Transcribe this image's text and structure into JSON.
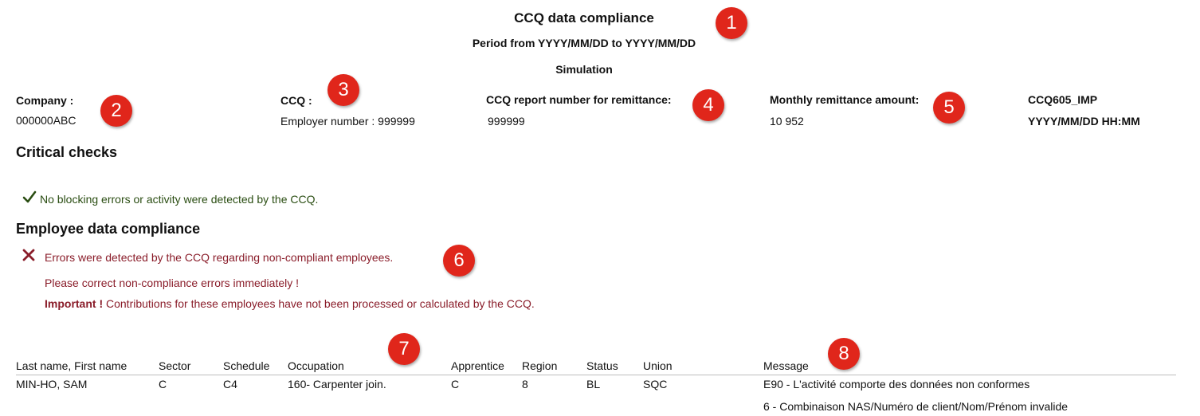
{
  "header": {
    "title": "CCQ data compliance",
    "period": "Period from YYYY/MM/DD to YYYY/MM/DD",
    "mode": "Simulation"
  },
  "info": {
    "company_label": "Company :",
    "company_value": "000000ABC",
    "ccq_label": "CCQ :",
    "ccq_value": "Employer number : 999999",
    "report_label": "CCQ report number for remittance:",
    "report_value": "999999",
    "amount_label": "Monthly remittance amount:",
    "amount_value": "10 952",
    "report_code": "CCQ605_IMP",
    "report_datetime": "YYYY/MM/DD HH:MM"
  },
  "critical": {
    "heading": "Critical checks",
    "icon": "check-icon",
    "message": "No blocking errors or activity were detected by the CCQ."
  },
  "employee": {
    "heading": "Employee data compliance",
    "icon": "x-icon",
    "error_message": "Errors were detected by the CCQ regarding non-compliant employees.",
    "correct_message": "Please correct non-compliance errors immediately !",
    "important_label": "Important !",
    "important_message": " Contributions for these employees have not been processed or calculated by the CCQ."
  },
  "table": {
    "columns": [
      "Last name, First name",
      "Sector",
      "Schedule",
      "Occupation",
      "Apprentice",
      "Region",
      "Status",
      "Union",
      "Message"
    ],
    "rows": [
      {
        "name": "MIN-HO, SAM",
        "sector": "C",
        "schedule": "C4",
        "occupation": "160- Carpenter join.",
        "apprentice": "C",
        "region": "8",
        "status": "BL",
        "union": "SQC",
        "messages": [
          "E90 - L'activité comporte des données non conformes",
          "6 - Combinaison NAS/Numéro de client/Nom/Prénom invalide"
        ]
      }
    ]
  },
  "badges": [
    "1",
    "2",
    "3",
    "4",
    "5",
    "6",
    "7",
    "8"
  ],
  "colors": {
    "badge": "#e0261b",
    "success": "#2a4d12",
    "error": "#8a1d2a"
  }
}
